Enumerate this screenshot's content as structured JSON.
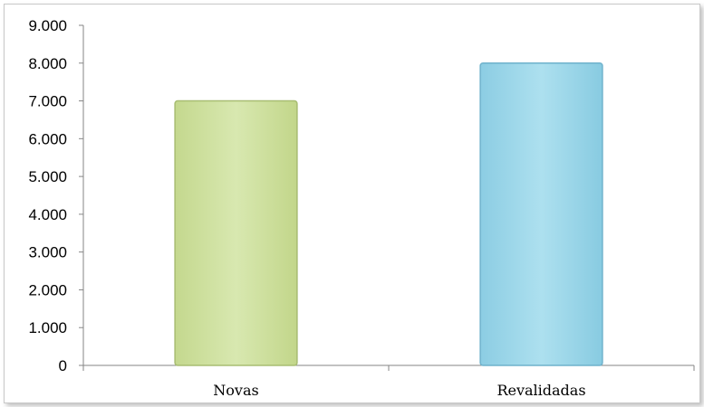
{
  "chart_data": {
    "type": "bar",
    "categories": [
      "Novas",
      "Revalidadas"
    ],
    "values": [
      7000,
      8000
    ],
    "title": "",
    "xlabel": "",
    "ylabel": "",
    "ylim": [
      0,
      9000
    ],
    "yticks": [
      "0",
      "1.000",
      "2.000",
      "3.000",
      "4.000",
      "5.000",
      "6.000",
      "7.000",
      "8.000",
      "9.000"
    ],
    "grid": false,
    "legend": "none",
    "bar_colors": [
      "#d3e4a6",
      "#a3d8ea"
    ],
    "bar_edge_colors": [
      "#a8bd72",
      "#6fb2cc"
    ]
  }
}
